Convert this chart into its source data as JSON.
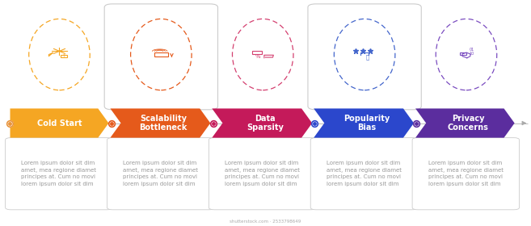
{
  "background_color": "#ffffff",
  "steps": [
    {
      "label": "Cold Start",
      "arrow_color": "#F5A623",
      "dot_color": "#E8933A",
      "icon_color": "#F5A623",
      "text_color": "#ffffff",
      "multiline": false
    },
    {
      "label": "Scalability\nBottleneck",
      "arrow_color": "#E55A1B",
      "dot_color": "#E55A1B",
      "icon_color": "#E55A1B",
      "text_color": "#ffffff",
      "multiline": true
    },
    {
      "label": "Data\nSparsity",
      "arrow_color": "#C41A5A",
      "dot_color": "#C41A5A",
      "icon_color": "#D44070",
      "text_color": "#ffffff",
      "multiline": true
    },
    {
      "label": "Popularity\nBias",
      "arrow_color": "#2B47CC",
      "dot_color": "#2B47CC",
      "icon_color": "#4466CC",
      "text_color": "#ffffff",
      "multiline": true
    },
    {
      "label": "Privacy\nConcerns",
      "arrow_color": "#5B2D9E",
      "dot_color": "#5B2D9E",
      "icon_color": "#7B4DC0",
      "text_color": "#ffffff",
      "multiline": true
    }
  ],
  "lorem_text": "Lorem ipsum dolor sit dim\namet, mea regione diamet\nprincipes at. Cum no movi\nlorem ipsum dolor sit dim",
  "shutterstock_text": "shutterstock.com · 2533798649",
  "label_fontsize": 7.0,
  "lorem_fontsize": 5.0
}
